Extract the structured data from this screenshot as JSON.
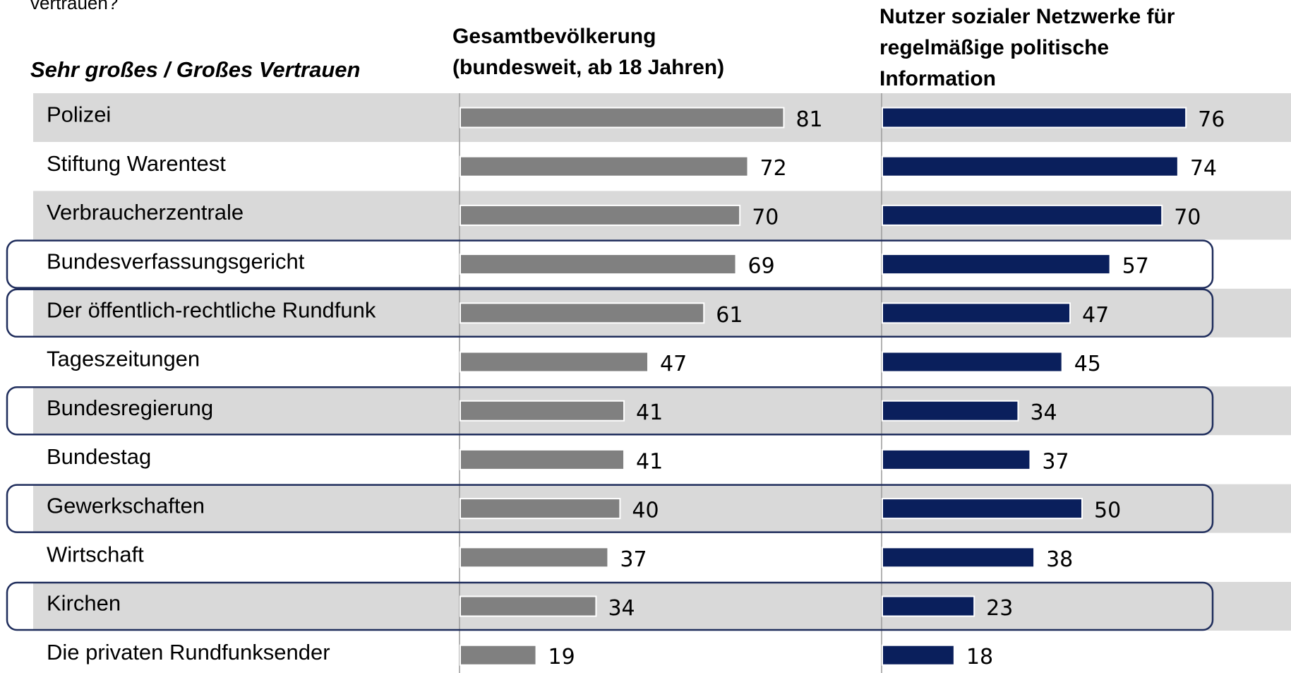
{
  "question": "vertrauen?",
  "chart_data": {
    "type": "bar",
    "legend_title": "Sehr großes  / Großes Vertrauen",
    "categories": [
      "Polizei",
      "Stiftung Warentest",
      "Verbraucherzentrale",
      "Bundesverfassungsgericht",
      "Der öffentlich-rechtliche Rundfunk",
      "Tageszeitungen",
      "Bundesregierung",
      "Bundestag",
      "Gewerkschaften",
      "Wirtschaft",
      "Kirchen",
      "Die privaten Rundfunksender"
    ],
    "series": [
      {
        "name": "Gesamtbevölkerung\n(bundesweit, ab 18 Jahren)",
        "color": "#808080",
        "values": [
          81,
          72,
          70,
          69,
          61,
          47,
          41,
          41,
          40,
          37,
          34,
          19
        ]
      },
      {
        "name": "Nutzer sozialer Netzwerke für\nregelmäßige politische\nInformation",
        "color": "#0a1f5c",
        "values": [
          76,
          74,
          70,
          57,
          47,
          45,
          34,
          37,
          50,
          38,
          23,
          18
        ]
      }
    ],
    "highlighted_rows": [
      3,
      4,
      6,
      8,
      10
    ]
  }
}
